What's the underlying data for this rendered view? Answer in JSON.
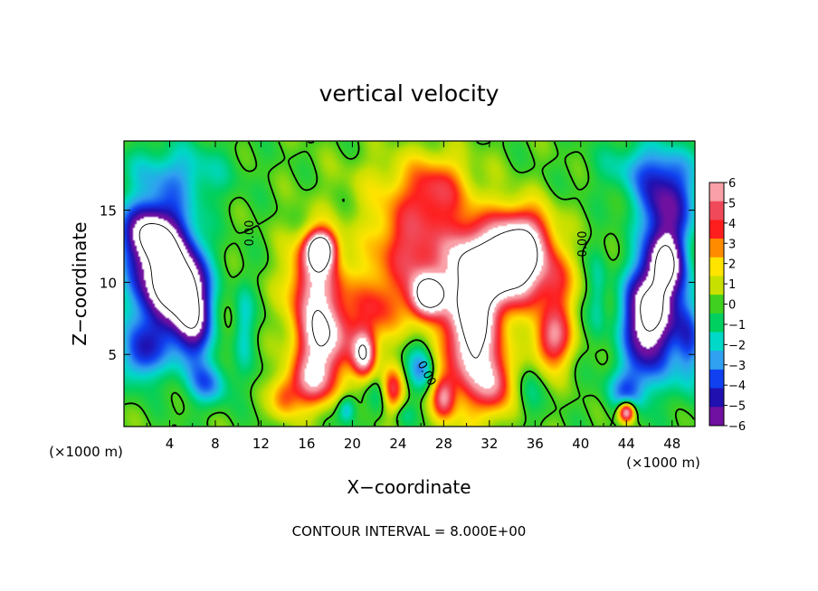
{
  "chart_data": {
    "type": "heatmap",
    "title": "vertical velocity",
    "xlabel": "X−coordinate",
    "ylabel": "Z−coordinate",
    "x_unit_left": "(×1000 m)",
    "x_unit_right": "(×1000 m)",
    "xlim": [
      0,
      50
    ],
    "ylim": [
      0,
      19.8
    ],
    "x_ticks": [
      4,
      8,
      12,
      16,
      20,
      24,
      28,
      32,
      36,
      40,
      44,
      48
    ],
    "y_ticks": [
      5,
      10,
      15
    ],
    "colorbar_labels": [
      "6",
      "5",
      "4",
      "3",
      "2",
      "1",
      "0",
      "−1",
      "−2",
      "−3",
      "−4",
      "−5",
      "−6"
    ],
    "colorbar_values": [
      6,
      5,
      4,
      3,
      2,
      1,
      0,
      -1,
      -2,
      -3,
      -4,
      -5,
      -6
    ],
    "colorbar_colors": [
      "#f9a0a8",
      "#f04a5a",
      "#ff1e1e",
      "#ff8c00",
      "#ffe400",
      "#c8e000",
      "#40d020",
      "#00d060",
      "#00d8c8",
      "#30a0f0",
      "#1040f0",
      "#2010b0",
      "#7010a0"
    ],
    "contour_labels": [
      "0.00",
      "0.00",
      "0.00"
    ],
    "footer": "CONTOUR INTERVAL = 8.000E+00",
    "blobs": [
      {
        "x": 3.5,
        "z": 10.5,
        "rx": 2.8,
        "rz": 4.0,
        "v": -9
      },
      {
        "x": 6.0,
        "z": 8.0,
        "rx": 1.6,
        "rz": 3.5,
        "v": -7
      },
      {
        "x": 2.0,
        "z": 13.5,
        "rx": 2.5,
        "rz": 2.0,
        "v": -5
      },
      {
        "x": 4.5,
        "z": 17.5,
        "rx": 4.5,
        "rz": 2.2,
        "v": -2.5
      },
      {
        "x": 1.5,
        "z": 5.0,
        "rx": 1.8,
        "rz": 2.0,
        "v": -4
      },
      {
        "x": 7.5,
        "z": 3.0,
        "rx": 1.8,
        "rz": 1.5,
        "v": -3
      },
      {
        "x": 10.5,
        "z": 7.0,
        "rx": 0.9,
        "rz": 3.0,
        "v": -2
      },
      {
        "x": 46.0,
        "z": 7.5,
        "rx": 2.2,
        "rz": 3.8,
        "v": -9
      },
      {
        "x": 47.5,
        "z": 11.5,
        "rx": 1.6,
        "rz": 2.5,
        "v": -7
      },
      {
        "x": 47.5,
        "z": 15.5,
        "rx": 2.5,
        "rz": 2.5,
        "v": -5
      },
      {
        "x": 46.0,
        "z": 18.0,
        "rx": 4.0,
        "rz": 2.0,
        "v": -2.5
      },
      {
        "x": 49.5,
        "z": 6.0,
        "rx": 1.2,
        "rz": 3.5,
        "v": -4
      },
      {
        "x": 44.0,
        "z": 2.5,
        "rx": 1.8,
        "rz": 1.6,
        "v": -3
      },
      {
        "x": 41.5,
        "z": 9.0,
        "rx": 0.8,
        "rz": 3.0,
        "v": -1.5
      },
      {
        "x": 26.0,
        "z": 4.0,
        "rx": 1.2,
        "rz": 1.6,
        "v": -3
      },
      {
        "x": 19.5,
        "z": 1.2,
        "rx": 0.8,
        "rz": 1.0,
        "v": -3
      },
      {
        "x": 22.5,
        "z": 2.0,
        "rx": 0.9,
        "rz": 1.4,
        "v": -1.5
      },
      {
        "x": 24.5,
        "z": 0.8,
        "rx": 1.0,
        "rz": 0.8,
        "v": -1
      },
      {
        "x": 35.5,
        "z": 2.5,
        "rx": 1.0,
        "rz": 2.0,
        "v": -1
      },
      {
        "x": 16.8,
        "z": 10.0,
        "rx": 2.4,
        "rz": 3.2,
        "v": 6
      },
      {
        "x": 17.5,
        "z": 6.0,
        "rx": 2.3,
        "rz": 2.6,
        "v": 7
      },
      {
        "x": 16.5,
        "z": 3.0,
        "rx": 2.0,
        "rz": 1.8,
        "v": 5
      },
      {
        "x": 17.2,
        "z": 12.3,
        "rx": 1.2,
        "rz": 1.2,
        "v": 9
      },
      {
        "x": 21.0,
        "z": 5.0,
        "rx": 1.0,
        "rz": 1.6,
        "v": 7
      },
      {
        "x": 22.0,
        "z": 8.0,
        "rx": 2.2,
        "rz": 2.5,
        "v": 3.5
      },
      {
        "x": 25.0,
        "z": 12.5,
        "rx": 3.5,
        "rz": 3.5,
        "v": 4.5
      },
      {
        "x": 26.5,
        "z": 9.0,
        "rx": 1.5,
        "rz": 1.6,
        "v": 8
      },
      {
        "x": 27.5,
        "z": 16.5,
        "rx": 2.5,
        "rz": 2.2,
        "v": 2.8
      },
      {
        "x": 30.5,
        "z": 6.8,
        "rx": 2.4,
        "rz": 4.8,
        "v": 9
      },
      {
        "x": 31.0,
        "z": 11.5,
        "rx": 3.5,
        "rz": 3.0,
        "v": 5
      },
      {
        "x": 34.5,
        "z": 11.0,
        "rx": 2.8,
        "rz": 2.5,
        "v": 8
      },
      {
        "x": 35.0,
        "z": 13.5,
        "rx": 2.5,
        "rz": 2.0,
        "v": 4.5
      },
      {
        "x": 37.5,
        "z": 6.0,
        "rx": 1.6,
        "rz": 2.0,
        "v": 5.5
      },
      {
        "x": 38.0,
        "z": 9.5,
        "rx": 1.5,
        "rz": 2.5,
        "v": 3
      },
      {
        "x": 23.5,
        "z": 2.5,
        "rx": 1.0,
        "rz": 1.5,
        "v": 4.5
      },
      {
        "x": 28.0,
        "z": 2.0,
        "rx": 1.0,
        "rz": 1.5,
        "v": 5
      },
      {
        "x": 32.5,
        "z": 3.0,
        "rx": 1.5,
        "rz": 2.0,
        "v": 4
      },
      {
        "x": 14.0,
        "z": 2.0,
        "rx": 1.2,
        "rz": 1.5,
        "v": 3
      },
      {
        "x": 44.0,
        "z": 1.0,
        "rx": 0.7,
        "rz": 0.7,
        "v": 8
      },
      {
        "x": 25.0,
        "z": 17.0,
        "rx": 6.0,
        "rz": 2.5,
        "v": 1.2
      }
    ]
  }
}
